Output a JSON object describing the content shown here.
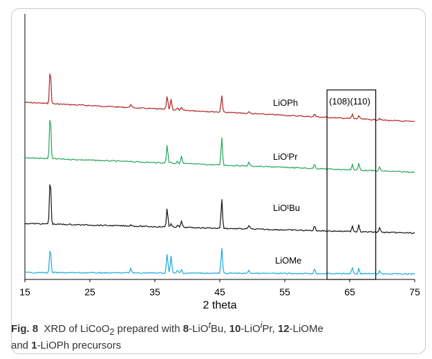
{
  "chart_data": {
    "type": "line",
    "xlabel": "2 theta",
    "xlim": [
      15,
      75
    ],
    "x_ticks": [
      15,
      25,
      35,
      45,
      55,
      65,
      75
    ],
    "grid": false,
    "peak_positions": [
      18.9,
      31.3,
      36.9,
      37.5,
      38.5,
      39.1,
      45.3,
      49.5,
      59.6,
      65.4,
      66.4,
      69.6
    ],
    "series": [
      {
        "name": "LiOPh",
        "color": "#b22222",
        "peaks": [
          1.0,
          0.1,
          0.38,
          0.3,
          0.05,
          0.06,
          0.48,
          0.06,
          0.08,
          0.12,
          0.09,
          0.05
        ]
      },
      {
        "name": "LiOⁱPr",
        "color": "#22a55a",
        "peaks": [
          1.0,
          0.02,
          0.4,
          0.03,
          0.04,
          0.16,
          0.6,
          0.08,
          0.1,
          0.12,
          0.14,
          0.08
        ]
      },
      {
        "name": "LiOᵗBu",
        "color": "#111111",
        "peaks": [
          1.0,
          0.03,
          0.4,
          0.06,
          0.05,
          0.13,
          0.6,
          0.08,
          0.1,
          0.12,
          0.15,
          0.1
        ]
      },
      {
        "name": "LiOMe",
        "color": "#1aa8dc",
        "peaks": [
          1.0,
          0.18,
          0.78,
          0.65,
          0.1,
          0.14,
          0.96,
          0.13,
          0.18,
          0.24,
          0.2,
          0.1
        ]
      }
    ],
    "annotation": "(108)(110)",
    "highlight_range": [
      61.5,
      69
    ]
  },
  "caption": {
    "fig_label": "Fig. 8",
    "text_1": "XRD of LiCoO",
    "sub_2": "2",
    "text_2": " prepared with ",
    "b_8": "8",
    "p1_a": "-LiO",
    "p1_sup": "t",
    "p1_b": "Bu, ",
    "b_10": "10",
    "p2_a": "-LiO",
    "p2_sup": "i",
    "p2_b": "Pr, ",
    "b_12": "12",
    "p3": "-LiOMe",
    "line2_a": "and ",
    "b_1": "1",
    "line2_b": "-LiOPh precursors"
  }
}
